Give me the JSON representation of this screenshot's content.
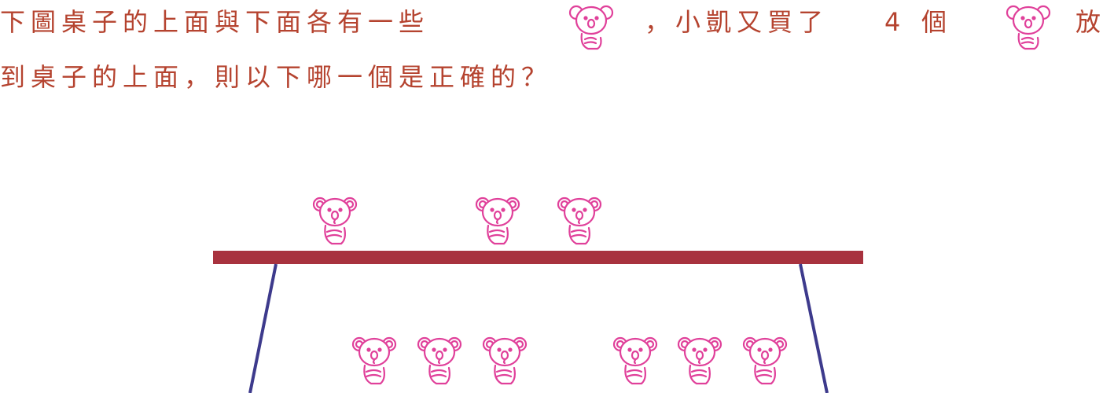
{
  "question": {
    "line1_part1": "下圖桌子的上面與下面各有一些",
    "line1_part2": "，小凱又買了",
    "line1_number": "4",
    "line1_part3": "個",
    "line1_part4": "放",
    "line2": "到桌子的上面，則以下哪一個是正確的？"
  },
  "colors": {
    "text": "#b5432f",
    "koala": "#e0409a",
    "table_top": "#a8323e",
    "table_legs": "#3d3a8c"
  },
  "scene": {
    "koalas_on_table": 3,
    "koalas_under_table": 6
  }
}
